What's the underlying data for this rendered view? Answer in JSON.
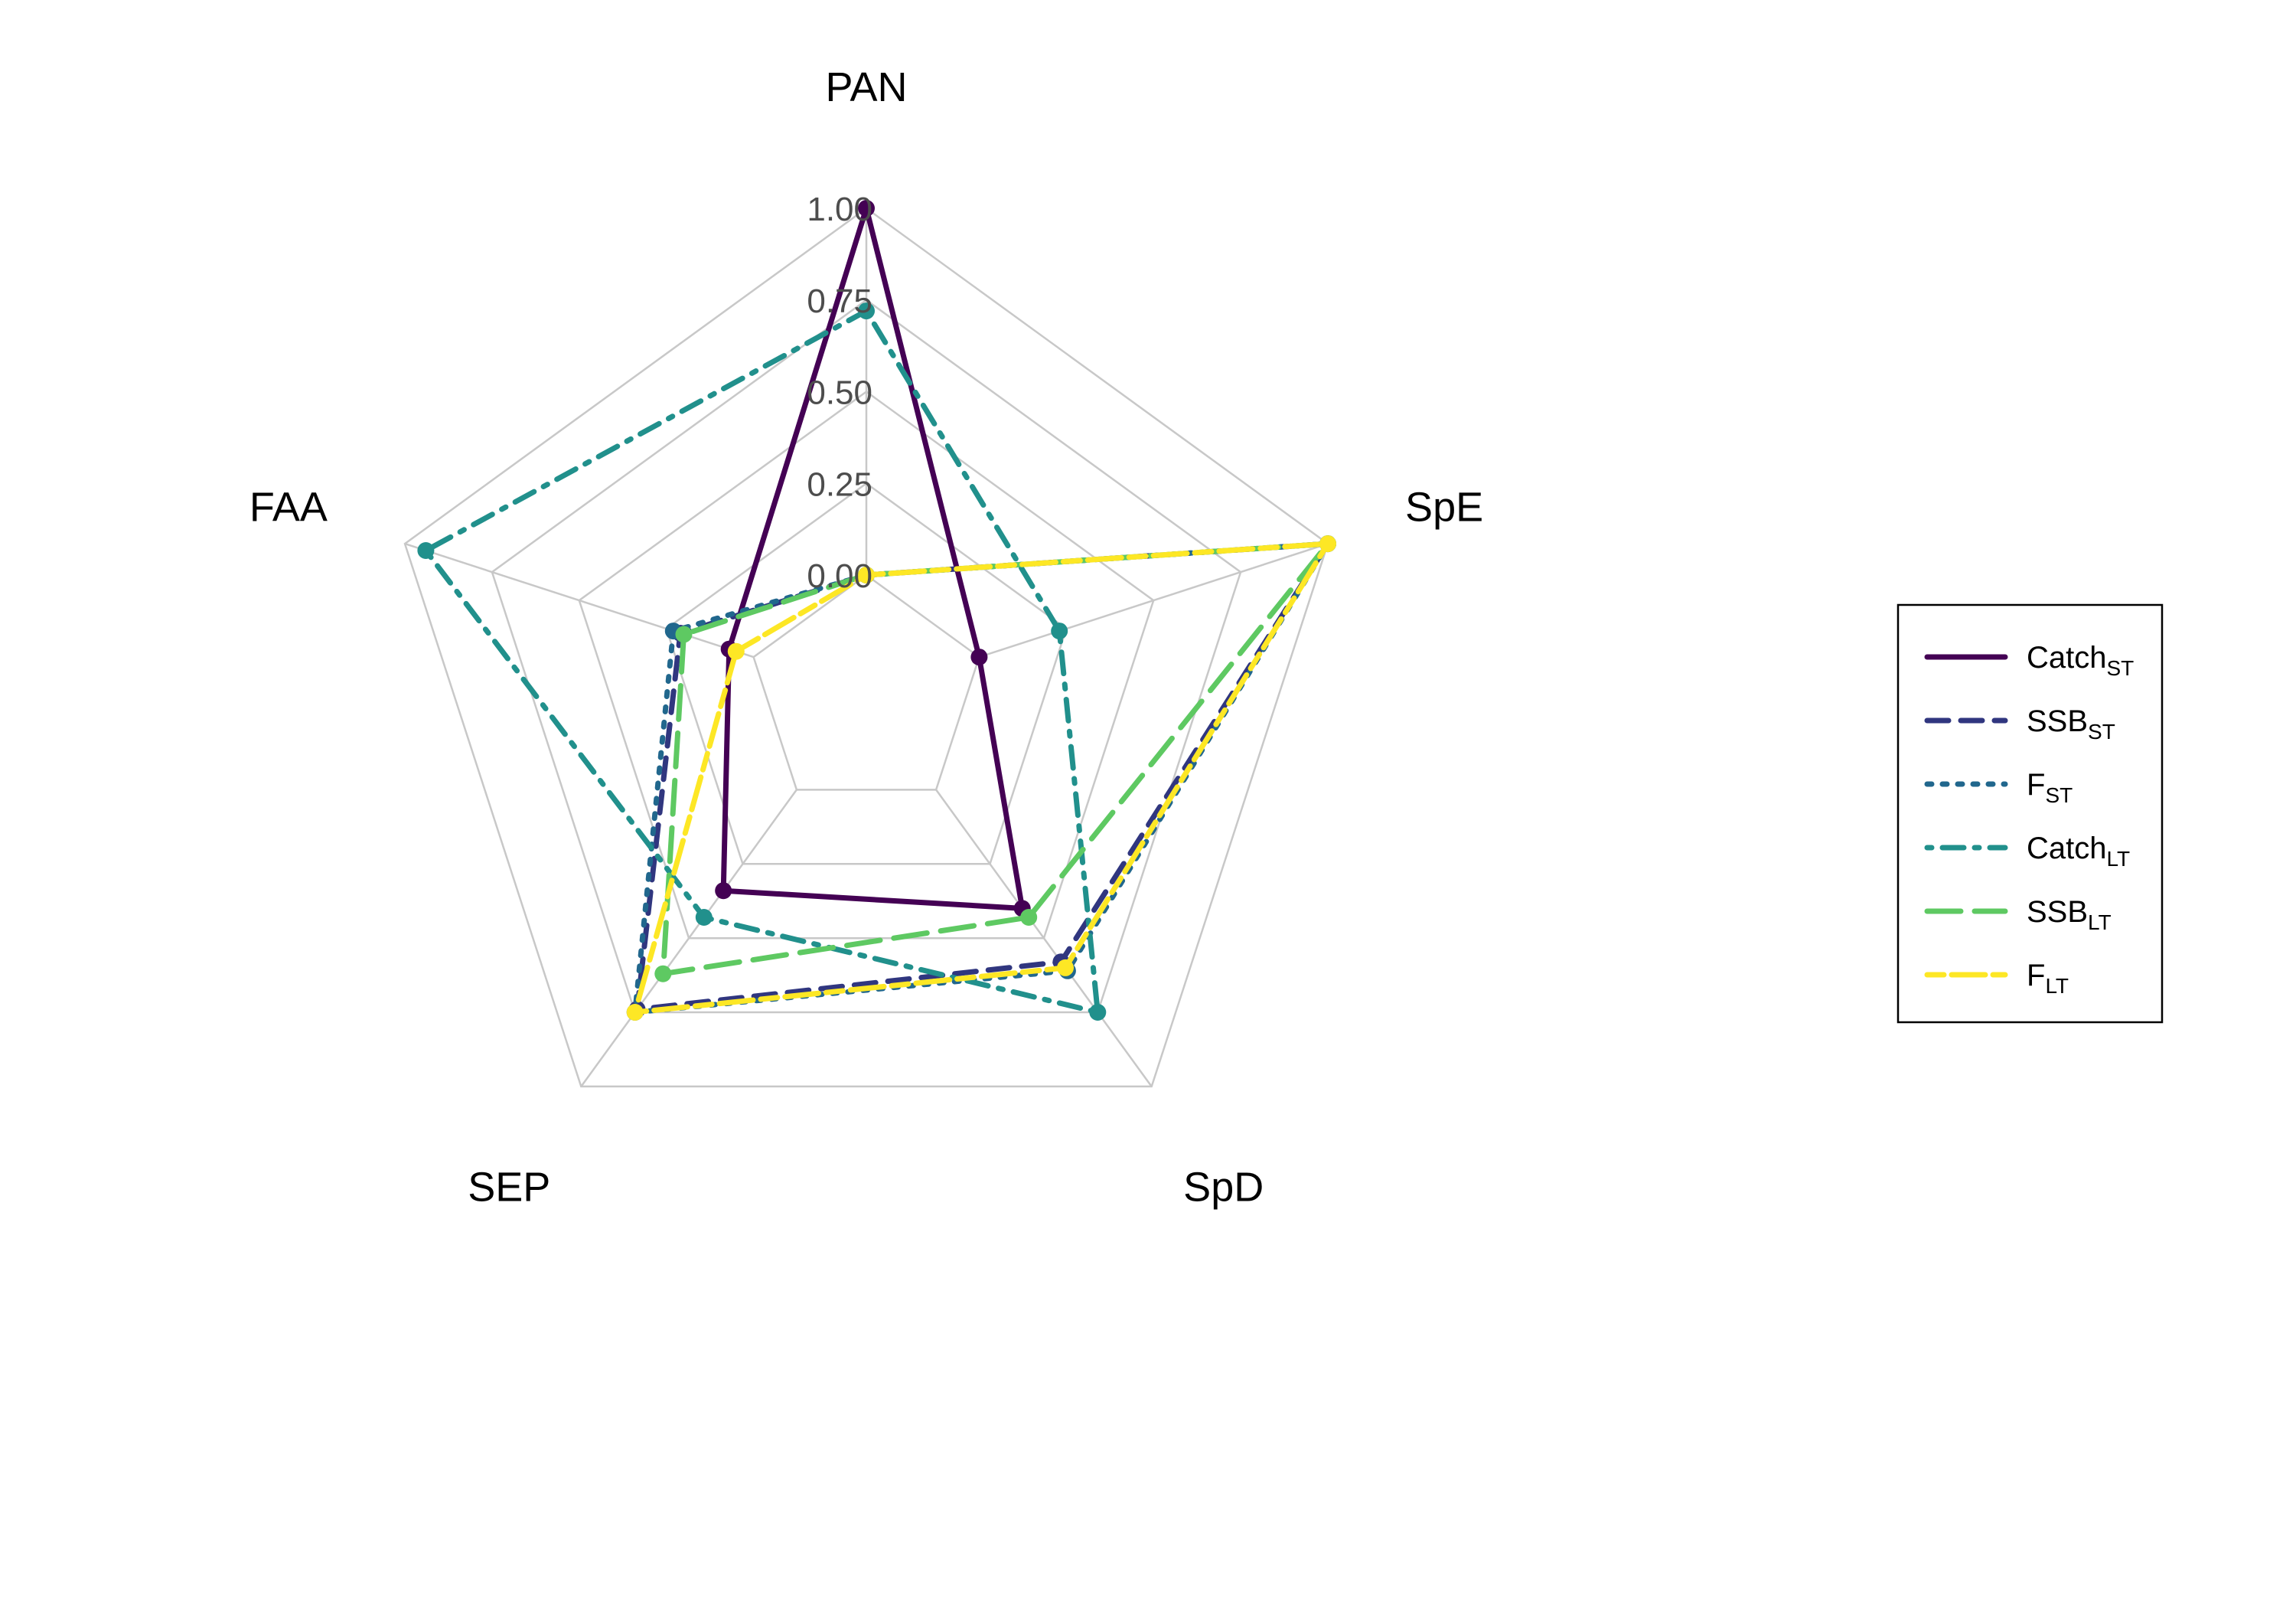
{
  "chart_data": {
    "type": "radar",
    "axes": [
      "PAN",
      "SpE",
      "SpD",
      "SEP",
      "FAA"
    ],
    "ticks": [
      "0.00",
      "0.25",
      "0.50",
      "0.75",
      "1.00"
    ],
    "range": [
      0,
      1
    ],
    "grid": true,
    "legend_position": "right",
    "series": [
      {
        "name": "Catch",
        "sub": "ST",
        "color": "#440154",
        "dash": "solid",
        "values": [
          1.0,
          0.0,
          0.4,
          0.34,
          0.07
        ]
      },
      {
        "name": "SSB",
        "sub": "ST",
        "color": "#30367f",
        "dash": "dashed",
        "values": [
          0.0,
          1.0,
          0.58,
          0.74,
          0.21
        ]
      },
      {
        "name": "F",
        "sub": "ST",
        "color": "#21678d",
        "dash": "dotted",
        "values": [
          0.0,
          1.0,
          0.61,
          0.75,
          0.23
        ]
      },
      {
        "name": "Catch",
        "sub": "LT",
        "color": "#21908c",
        "dash": "dotdash",
        "values": [
          0.72,
          0.23,
          0.75,
          0.43,
          0.94
        ]
      },
      {
        "name": "SSB",
        "sub": "LT",
        "color": "#5ec962",
        "dash": "longdash",
        "values": [
          0.0,
          1.0,
          0.43,
          0.62,
          0.2
        ]
      },
      {
        "name": "F",
        "sub": "LT",
        "color": "#fde725",
        "dash": "twodash",
        "values": [
          0.0,
          1.0,
          0.6,
          0.75,
          0.05
        ]
      }
    ]
  }
}
